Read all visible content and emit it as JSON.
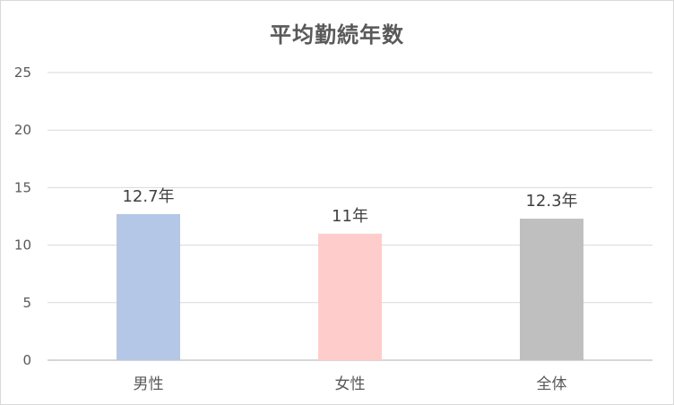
{
  "chart_data": {
    "type": "bar",
    "title": "平均勤続年数",
    "categories": [
      "男性",
      "女性",
      "全体"
    ],
    "values": [
      12.7,
      11,
      12.3
    ],
    "data_labels": [
      "12.7年",
      "11年",
      "12.3年"
    ],
    "bar_colors": [
      "#b4c7e7",
      "#ffcccc",
      "#bfbfbf"
    ],
    "ylim": [
      0,
      25
    ],
    "yticks": [
      "0",
      "5",
      "10",
      "15",
      "20",
      "25"
    ],
    "ytick_values": [
      0,
      5,
      10,
      15,
      20,
      25
    ],
    "grid": true,
    "legend": "none",
    "xlabel": "",
    "ylabel": ""
  }
}
